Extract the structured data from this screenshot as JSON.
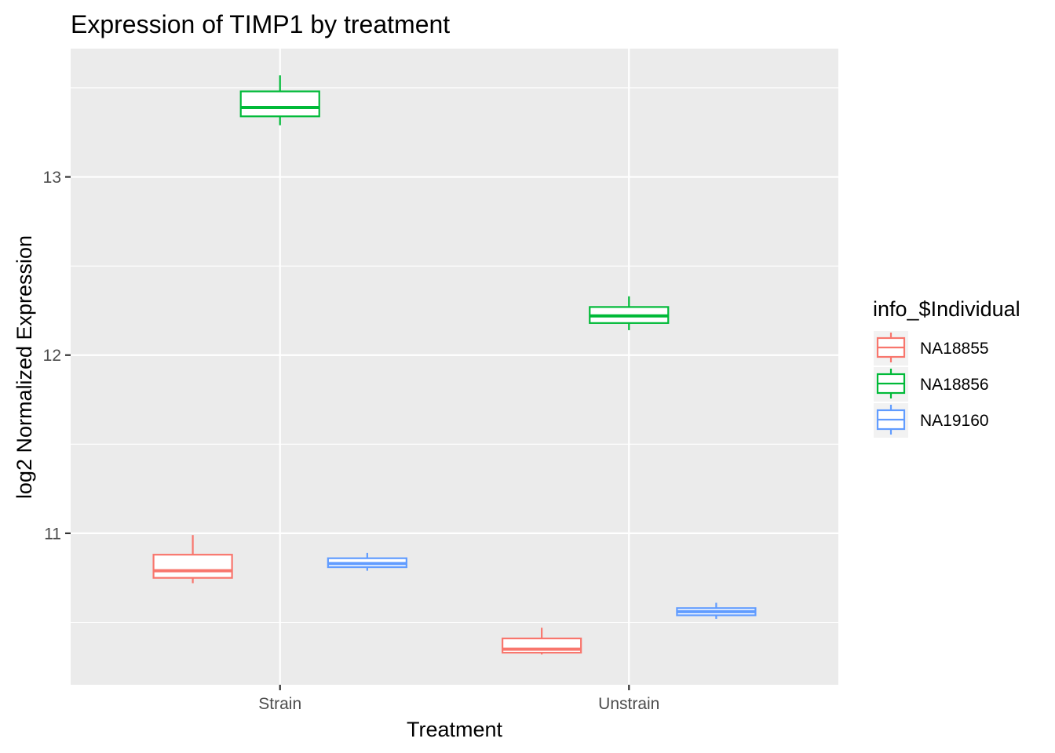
{
  "chart_data": {
    "type": "boxplot",
    "title": "Expression of TIMP1 by treatment",
    "xlabel": "Treatment",
    "ylabel": "log2 Normalized Expression",
    "categories": [
      "Strain",
      "Unstrain"
    ],
    "ylim": [
      10.15,
      13.72
    ],
    "yticks": [
      11,
      12,
      13
    ],
    "ytick_labels": [
      "11",
      "12",
      "13"
    ],
    "grid": true,
    "legend": {
      "title": "info_$Individual",
      "position": "right"
    },
    "series": [
      {
        "name": "NA18855",
        "color": "#F8766D",
        "boxes": [
          {
            "category": "Strain",
            "min": 10.72,
            "q1": 10.75,
            "median": 10.79,
            "q3": 10.88,
            "max": 10.99
          },
          {
            "category": "Unstrain",
            "min": 10.32,
            "q1": 10.33,
            "median": 10.35,
            "q3": 10.41,
            "max": 10.47
          }
        ]
      },
      {
        "name": "NA18856",
        "color": "#00BA38",
        "boxes": [
          {
            "category": "Strain",
            "min": 13.29,
            "q1": 13.34,
            "median": 13.39,
            "q3": 13.48,
            "max": 13.57
          },
          {
            "category": "Unstrain",
            "min": 12.14,
            "q1": 12.18,
            "median": 12.22,
            "q3": 12.27,
            "max": 12.33
          }
        ]
      },
      {
        "name": "NA19160",
        "color": "#619CFF",
        "boxes": [
          {
            "category": "Strain",
            "min": 10.79,
            "q1": 10.81,
            "median": 10.83,
            "q3": 10.86,
            "max": 10.89
          },
          {
            "category": "Unstrain",
            "min": 10.52,
            "q1": 10.54,
            "median": 10.56,
            "q3": 10.58,
            "max": 10.61
          }
        ]
      }
    ]
  }
}
